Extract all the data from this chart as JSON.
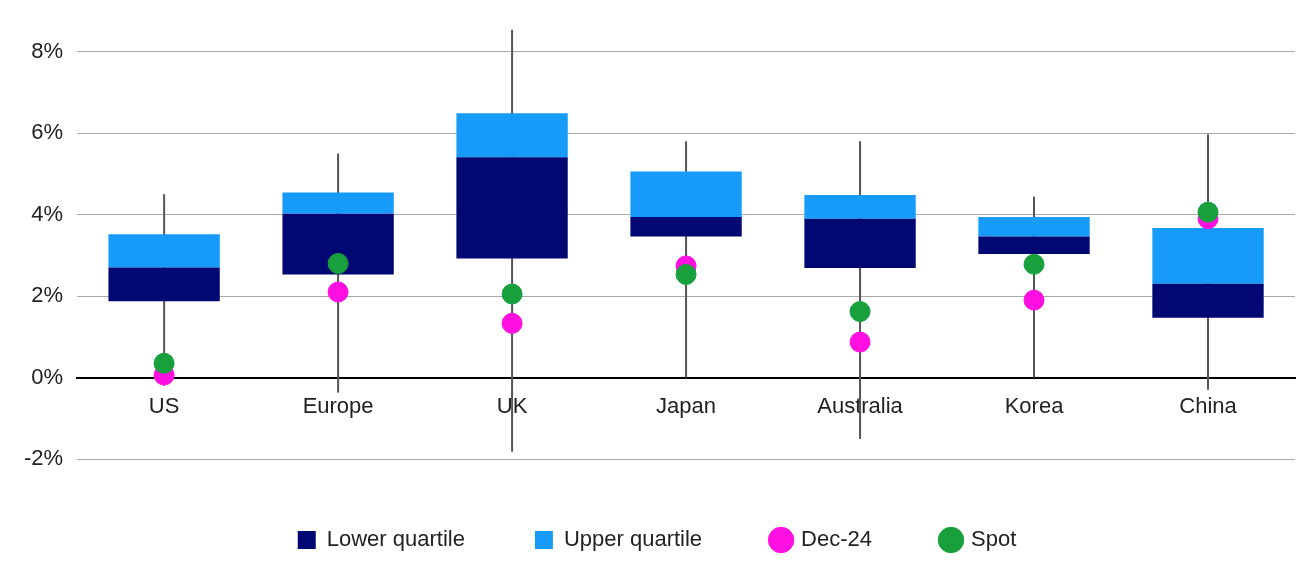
{
  "chart_data": {
    "type": "bar",
    "stacked": true,
    "categories": [
      "US",
      "Europe",
      "UK",
      "Japan",
      "Australia",
      "Korea",
      "China"
    ],
    "series": [
      {
        "name": "Lower quartile",
        "color": "#020873",
        "base": [
          1.87,
          2.53,
          2.92,
          3.46,
          2.69,
          3.03,
          1.47
        ],
        "values": [
          0.83,
          1.49,
          2.49,
          0.48,
          1.21,
          0.43,
          0.83
        ],
        "errors": [
          [
            -0.2,
            4.5
          ],
          [
            -0.37,
            5.5
          ],
          [
            -1.82,
            8.54
          ],
          [
            0,
            5.8
          ],
          [
            -1.51,
            5.8
          ],
          [
            0,
            4.44
          ],
          [
            -0.3,
            5.97
          ]
        ]
      },
      {
        "name": "Upper quartile",
        "color": "#169bfa",
        "values": [
          0.82,
          0.52,
          1.08,
          1.12,
          0.58,
          0.48,
          1.37
        ]
      },
      {
        "name": "Dec-24",
        "type": "scatter",
        "color": "#ff10e0",
        "x": [
          "US",
          "Europe",
          "UK",
          "Japan",
          "Australia",
          "Korea",
          "China"
        ],
        "values": [
          0.06,
          2.1,
          1.33,
          2.74,
          0.87,
          1.9,
          3.9
        ]
      },
      {
        "name": "Spot",
        "type": "scatter",
        "color": "#17a03c",
        "x": [
          "US",
          "Europe",
          "UK",
          "Japan",
          "Australia",
          "Korea",
          "China"
        ],
        "values": [
          0.35,
          2.8,
          2.05,
          2.53,
          1.62,
          2.78,
          4.06
        ]
      }
    ],
    "ylim": [
      -2,
      8.6
    ],
    "yticks": [
      {
        "value": -2,
        "label": "-2%"
      },
      {
        "value": 0,
        "label": "0%"
      },
      {
        "value": 2,
        "label": "2%"
      },
      {
        "value": 4,
        "label": "4%"
      },
      {
        "value": 6,
        "label": "6%"
      },
      {
        "value": 8,
        "label": "8%"
      }
    ],
    "grid": "y",
    "legend": "bottom",
    "marker": "circle"
  }
}
